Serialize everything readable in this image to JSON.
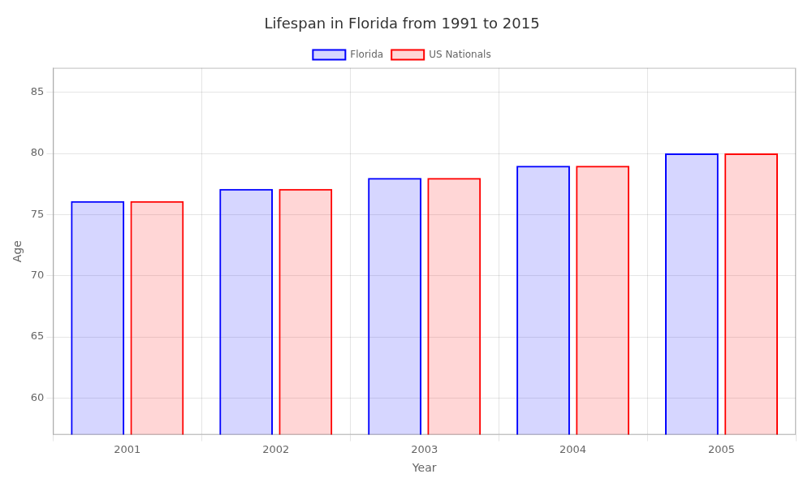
{
  "chart_data": {
    "type": "bar",
    "title": "Lifespan in Florida from 1991 to 2015",
    "x_label": "Year",
    "y_label": "Age",
    "categories": [
      "2001",
      "2002",
      "2003",
      "2004",
      "2005"
    ],
    "series": [
      {
        "name": "Florida",
        "color": "#0000ff",
        "values": [
          76.1,
          77.1,
          78.0,
          79.0,
          80.0
        ]
      },
      {
        "name": "US Nationals",
        "color": "#ff0000",
        "values": [
          76.1,
          77.1,
          78.0,
          79.0,
          80.0
        ]
      }
    ],
    "ylim": [
      57,
      87
    ],
    "yticks": [
      60,
      65,
      70,
      75,
      80,
      85
    ],
    "grid": true,
    "legend": "top"
  }
}
